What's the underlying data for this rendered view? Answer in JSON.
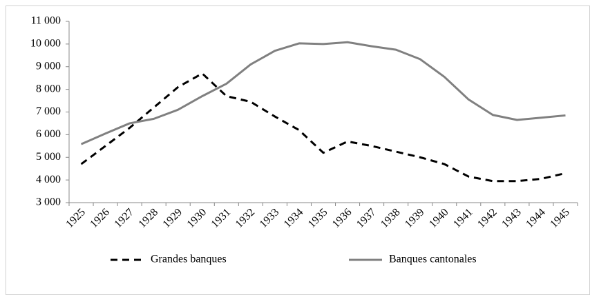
{
  "chart_data": {
    "type": "line",
    "categories": [
      "1925",
      "1926",
      "1927",
      "1928",
      "1929",
      "1930",
      "1931",
      "1932",
      "1933",
      "1934",
      "1935",
      "1936",
      "1937",
      "1938",
      "1939",
      "1940",
      "1941",
      "1942",
      "1943",
      "1944",
      "1945"
    ],
    "series": [
      {
        "name": "Grandes banques",
        "color": "#000000",
        "dash": true,
        "values": [
          4700,
          5500,
          6300,
          7200,
          8100,
          8700,
          7700,
          7450,
          6800,
          6200,
          5200,
          5700,
          5500,
          5250,
          5000,
          4700,
          4150,
          3950,
          3950,
          4050,
          4300
        ]
      },
      {
        "name": "Banques cantonales",
        "color": "#808080",
        "dash": false,
        "values": [
          5580,
          6050,
          6500,
          6700,
          7100,
          7700,
          8250,
          9100,
          9700,
          10030,
          10000,
          10080,
          9900,
          9750,
          9330,
          8550,
          7550,
          6870,
          6650,
          6750,
          6850
        ]
      }
    ],
    "ylim": [
      3000,
      11000
    ],
    "yticks": [
      {
        "value": 3000,
        "label": "3 000"
      },
      {
        "value": 4000,
        "label": "4 000"
      },
      {
        "value": 5000,
        "label": "5 000"
      },
      {
        "value": 6000,
        "label": "6 000"
      },
      {
        "value": 7000,
        "label": "7 000"
      },
      {
        "value": 8000,
        "label": "8 000"
      },
      {
        "value": 9000,
        "label": "9 000"
      },
      {
        "value": 10000,
        "label": "10 000"
      },
      {
        "value": 11000,
        "label": "11 000"
      }
    ],
    "grid": false,
    "legend": "bottom"
  }
}
